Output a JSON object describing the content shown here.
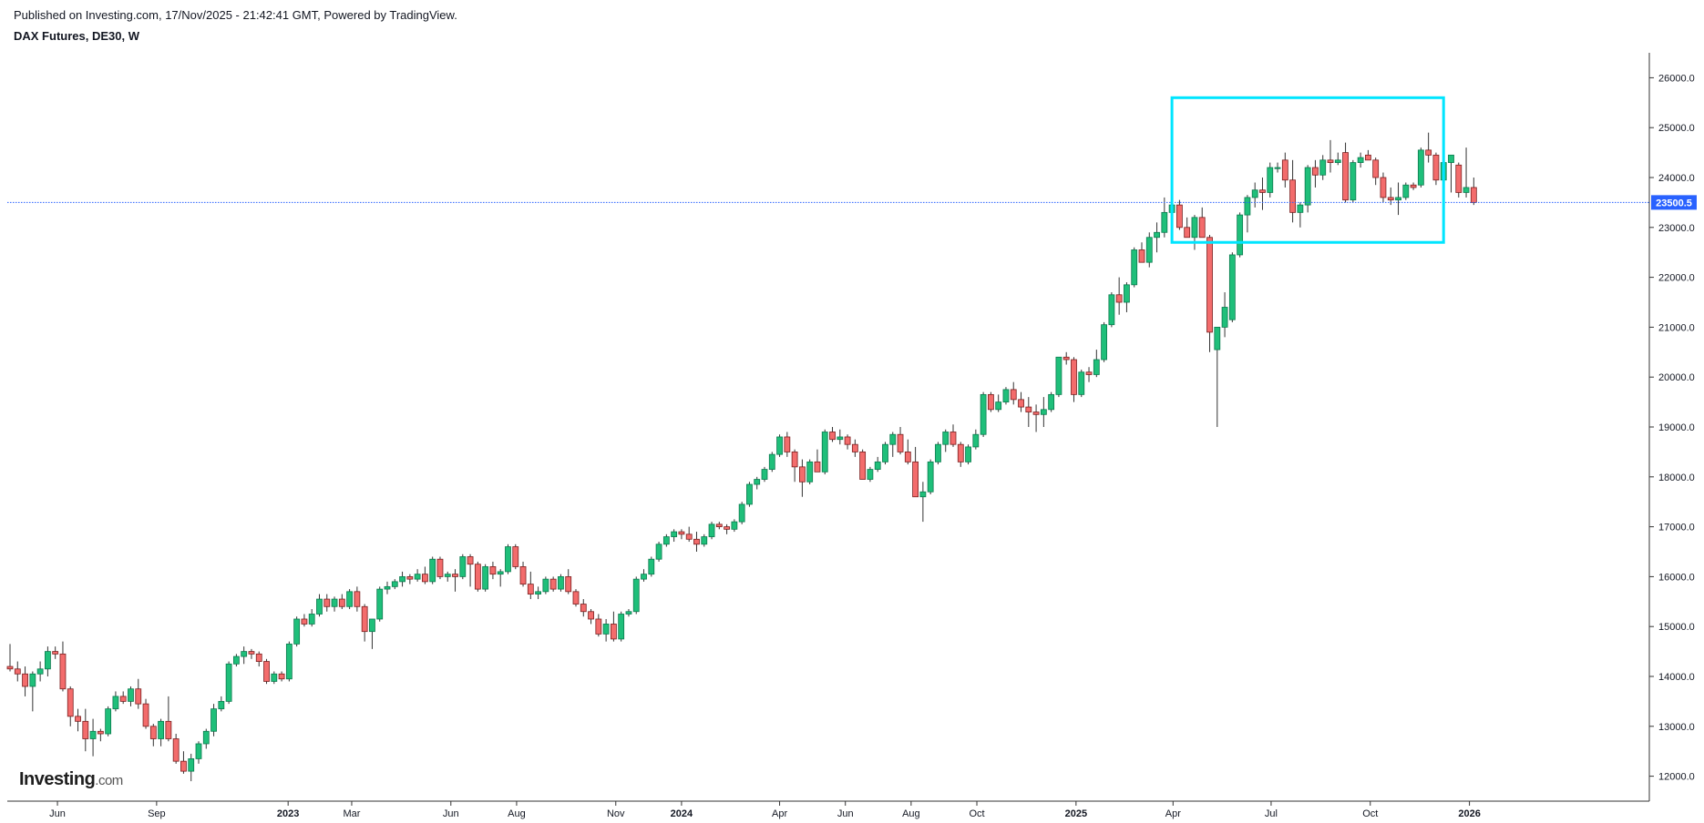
{
  "header": {
    "published": "Published on Investing.com, 17/Nov/2025 - 21:42:41 GMT, Powered by TradingView.",
    "title": "DAX Futures, DE30, W"
  },
  "logo": {
    "name": "Investing",
    "suffix": ".com"
  },
  "colors": {
    "up": "#26a69a",
    "upFill": "#1fbf7a",
    "down": "#ef5350",
    "downFill": "#f36c6c",
    "priceLine": "#2962ff",
    "box": "#00e5ff",
    "axis": "#333333"
  },
  "chart_data": {
    "type": "candlestick",
    "title": "DAX Futures, DE30, W",
    "ylim": [
      11500,
      26500
    ],
    "y_ticks": [
      "26000.0",
      "25000.0",
      "24000.0",
      "23000.0",
      "22000.0",
      "21000.0",
      "20000.0",
      "19000.0",
      "18000.0",
      "17000.0",
      "16000.0",
      "15000.0",
      "14000.0",
      "13000.0",
      "12000.0"
    ],
    "x_ticks": [
      {
        "label": "Jun",
        "date": "2022-06-01",
        "bold": false
      },
      {
        "label": "Sep",
        "date": "2022-09-01",
        "bold": false
      },
      {
        "label": "2023",
        "date": "2023-01-01",
        "bold": true
      },
      {
        "label": "Mar",
        "date": "2023-03-01",
        "bold": false
      },
      {
        "label": "Jun",
        "date": "2023-06-01",
        "bold": false
      },
      {
        "label": "Aug",
        "date": "2023-08-01",
        "bold": false
      },
      {
        "label": "Nov",
        "date": "2023-11-01",
        "bold": false
      },
      {
        "label": "2024",
        "date": "2024-01-01",
        "bold": true
      },
      {
        "label": "Apr",
        "date": "2024-04-01",
        "bold": false
      },
      {
        "label": "Jun",
        "date": "2024-06-01",
        "bold": false
      },
      {
        "label": "Aug",
        "date": "2024-08-01",
        "bold": false
      },
      {
        "label": "Oct",
        "date": "2024-10-01",
        "bold": false
      },
      {
        "label": "2025",
        "date": "2025-01-01",
        "bold": true
      },
      {
        "label": "Apr",
        "date": "2025-04-01",
        "bold": false
      },
      {
        "label": "Jul",
        "date": "2025-07-01",
        "bold": false
      },
      {
        "label": "Oct",
        "date": "2025-10-01",
        "bold": false
      },
      {
        "label": "2026",
        "date": "2026-01-01",
        "bold": true
      }
    ],
    "first_week": "2022-04-18",
    "last_price": 23500.5,
    "last_price_label": "23500.5",
    "highlight_box": {
      "x_from": "2025-03-31",
      "x_to": "2025-12-08",
      "y_from": 22700,
      "y_to": 25600
    },
    "candles": [
      [
        14200,
        14650,
        14100,
        14150
      ],
      [
        14150,
        14300,
        13900,
        14050
      ],
      [
        14050,
        14200,
        13600,
        13800
      ],
      [
        13800,
        14100,
        13300,
        14050
      ],
      [
        14050,
        14300,
        13900,
        14150
      ],
      [
        14150,
        14600,
        14000,
        14500
      ],
      [
        14500,
        14600,
        14350,
        14450
      ],
      [
        14450,
        14700,
        13700,
        13750
      ],
      [
        13750,
        13800,
        13000,
        13200
      ],
      [
        13200,
        13350,
        12900,
        13100
      ],
      [
        13100,
        13350,
        12500,
        12750
      ],
      [
        12750,
        13150,
        12400,
        12900
      ],
      [
        12900,
        12950,
        12700,
        12850
      ],
      [
        12850,
        13400,
        12800,
        13350
      ],
      [
        13350,
        13700,
        13300,
        13600
      ],
      [
        13600,
        13700,
        13450,
        13500
      ],
      [
        13500,
        13800,
        13400,
        13750
      ],
      [
        13750,
        13950,
        13350,
        13450
      ],
      [
        13450,
        13550,
        12950,
        13000
      ],
      [
        13000,
        13050,
        12600,
        12750
      ],
      [
        12750,
        13150,
        12600,
        13100
      ],
      [
        13100,
        13600,
        12700,
        12750
      ],
      [
        12750,
        12850,
        12250,
        12300
      ],
      [
        12300,
        12500,
        12050,
        12100
      ],
      [
        12100,
        12450,
        11900,
        12350
      ],
      [
        12350,
        12700,
        12250,
        12650
      ],
      [
        12650,
        12950,
        12550,
        12900
      ],
      [
        12900,
        13450,
        12800,
        13350
      ],
      [
        13350,
        13600,
        13300,
        13500
      ],
      [
        13500,
        14300,
        13450,
        14250
      ],
      [
        14250,
        14450,
        14200,
        14400
      ],
      [
        14400,
        14600,
        14250,
        14500
      ],
      [
        14500,
        14550,
        14350,
        14450
      ],
      [
        14450,
        14500,
        14200,
        14300
      ],
      [
        14300,
        14350,
        13850,
        13900
      ],
      [
        13900,
        14100,
        13850,
        14050
      ],
      [
        14050,
        14100,
        13900,
        13950
      ],
      [
        13950,
        14700,
        13900,
        14650
      ],
      [
        14650,
        15200,
        14600,
        15150
      ],
      [
        15150,
        15250,
        15000,
        15050
      ],
      [
        15050,
        15350,
        15000,
        15250
      ],
      [
        15250,
        15650,
        15200,
        15550
      ],
      [
        15550,
        15650,
        15300,
        15400
      ],
      [
        15400,
        15600,
        15300,
        15550
      ],
      [
        15550,
        15650,
        15350,
        15400
      ],
      [
        15400,
        15750,
        15350,
        15700
      ],
      [
        15700,
        15800,
        15300,
        15400
      ],
      [
        15400,
        15450,
        14700,
        14900
      ],
      [
        14900,
        15100,
        14550,
        15150
      ],
      [
        15150,
        15800,
        15100,
        15750
      ],
      [
        15750,
        15900,
        15650,
        15800
      ],
      [
        15800,
        15950,
        15750,
        15900
      ],
      [
        15900,
        16100,
        15800,
        16000
      ],
      [
        16000,
        16050,
        15850,
        15950
      ],
      [
        15950,
        16150,
        15900,
        16050
      ],
      [
        16050,
        16200,
        15850,
        15900
      ],
      [
        15900,
        16400,
        15850,
        16350
      ],
      [
        16350,
        16400,
        15950,
        16000
      ],
      [
        16000,
        16100,
        15900,
        16050
      ],
      [
        16050,
        16150,
        15700,
        16000
      ],
      [
        16000,
        16450,
        15950,
        16400
      ],
      [
        16400,
        16450,
        15800,
        16250
      ],
      [
        16250,
        16300,
        15700,
        15750
      ],
      [
        15750,
        16250,
        15700,
        16200
      ],
      [
        16200,
        16300,
        15950,
        16050
      ],
      [
        16050,
        16150,
        15800,
        16100
      ],
      [
        16100,
        16650,
        16050,
        16600
      ],
      [
        16600,
        16650,
        16150,
        16200
      ],
      [
        16200,
        16300,
        15800,
        15850
      ],
      [
        15850,
        16100,
        15550,
        15650
      ],
      [
        15650,
        15800,
        15550,
        15700
      ],
      [
        15700,
        16000,
        15650,
        15950
      ],
      [
        15950,
        16000,
        15700,
        15750
      ],
      [
        15750,
        16050,
        15700,
        16000
      ],
      [
        16000,
        16150,
        15650,
        15700
      ],
      [
        15700,
        15750,
        15400,
        15450
      ],
      [
        15450,
        15550,
        15200,
        15300
      ],
      [
        15300,
        15350,
        15050,
        15150
      ],
      [
        15150,
        15250,
        14800,
        14850
      ],
      [
        14850,
        15150,
        14700,
        15050
      ],
      [
        15050,
        15300,
        14700,
        14750
      ],
      [
        14750,
        15300,
        14700,
        15250
      ],
      [
        15250,
        15350,
        15200,
        15300
      ],
      [
        15300,
        16000,
        15250,
        15950
      ],
      [
        15950,
        16150,
        15900,
        16050
      ],
      [
        16050,
        16400,
        16000,
        16350
      ],
      [
        16350,
        16700,
        16300,
        16650
      ],
      [
        16650,
        16850,
        16600,
        16800
      ],
      [
        16800,
        16950,
        16700,
        16900
      ],
      [
        16900,
        16950,
        16750,
        16850
      ],
      [
        16850,
        17000,
        16700,
        16750
      ],
      [
        16750,
        16900,
        16500,
        16650
      ],
      [
        16650,
        16850,
        16600,
        16800
      ],
      [
        16800,
        17100,
        16750,
        17050
      ],
      [
        17050,
        17100,
        16950,
        17000
      ],
      [
        17000,
        17050,
        16850,
        16950
      ],
      [
        16950,
        17150,
        16900,
        17100
      ],
      [
        17100,
        17500,
        17050,
        17450
      ],
      [
        17450,
        17900,
        17400,
        17850
      ],
      [
        17850,
        18000,
        17750,
        17950
      ],
      [
        17950,
        18200,
        17900,
        18150
      ],
      [
        18150,
        18500,
        18100,
        18450
      ],
      [
        18450,
        18850,
        18400,
        18800
      ],
      [
        18800,
        18900,
        18400,
        18500
      ],
      [
        18500,
        18550,
        17900,
        18200
      ],
      [
        18200,
        18350,
        17600,
        17900
      ],
      [
        17900,
        18350,
        17850,
        18300
      ],
      [
        18300,
        18550,
        18100,
        18100
      ],
      [
        18100,
        18950,
        18050,
        18900
      ],
      [
        18900,
        19000,
        18700,
        18750
      ],
      [
        18750,
        18950,
        18650,
        18800
      ],
      [
        18800,
        18850,
        18550,
        18650
      ],
      [
        18650,
        18750,
        18400,
        18500
      ],
      [
        18500,
        18550,
        17950,
        17950
      ],
      [
        17950,
        18200,
        17900,
        18150
      ],
      [
        18150,
        18400,
        18100,
        18300
      ],
      [
        18300,
        18700,
        18250,
        18650
      ],
      [
        18650,
        18900,
        18400,
        18850
      ],
      [
        18850,
        19000,
        18450,
        18500
      ],
      [
        18500,
        18750,
        18250,
        18300
      ],
      [
        18300,
        18600,
        17600,
        17600
      ],
      [
        17600,
        17900,
        17100,
        17700
      ],
      [
        17700,
        18350,
        17650,
        18300
      ],
      [
        18300,
        18700,
        18250,
        18650
      ],
      [
        18650,
        18950,
        18500,
        18900
      ],
      [
        18900,
        19050,
        18600,
        18650
      ],
      [
        18650,
        18700,
        18200,
        18300
      ],
      [
        18300,
        18650,
        18250,
        18600
      ],
      [
        18600,
        18950,
        18550,
        18850
      ],
      [
        18850,
        19700,
        18800,
        19650
      ],
      [
        19650,
        19700,
        19300,
        19350
      ],
      [
        19350,
        19650,
        19300,
        19500
      ],
      [
        19500,
        19800,
        19450,
        19750
      ],
      [
        19750,
        19900,
        19450,
        19550
      ],
      [
        19550,
        19700,
        19300,
        19400
      ],
      [
        19400,
        19600,
        19000,
        19300
      ],
      [
        19300,
        19450,
        18900,
        19250
      ],
      [
        19250,
        19600,
        19000,
        19350
      ],
      [
        19350,
        19700,
        19300,
        19650
      ],
      [
        19650,
        20400,
        19600,
        20400
      ],
      [
        20400,
        20500,
        20250,
        20350
      ],
      [
        20350,
        20400,
        19500,
        19650
      ],
      [
        19650,
        20150,
        19600,
        20100
      ],
      [
        20100,
        20200,
        19900,
        20050
      ],
      [
        20050,
        20550,
        20000,
        20350
      ],
      [
        20350,
        21100,
        20300,
        21050
      ],
      [
        21050,
        21700,
        21000,
        21650
      ],
      [
        21650,
        22000,
        21250,
        21500
      ],
      [
        21500,
        21900,
        21300,
        21850
      ],
      [
        21850,
        22600,
        21800,
        22550
      ],
      [
        22550,
        22700,
        22300,
        22300
      ],
      [
        22300,
        22900,
        22200,
        22800
      ],
      [
        22800,
        23100,
        22500,
        22900
      ],
      [
        22900,
        23600,
        22800,
        23300
      ],
      [
        23300,
        23700,
        23000,
        23450
      ],
      [
        23450,
        23550,
        22950,
        23000
      ],
      [
        23000,
        23200,
        22800,
        22800
      ],
      [
        22800,
        23250,
        22550,
        23200
      ],
      [
        23200,
        23400,
        22800,
        22800
      ],
      [
        22800,
        22850,
        20500,
        20900
      ],
      [
        20550,
        21000,
        19000,
        21000
      ],
      [
        21000,
        21700,
        20800,
        21400
      ],
      [
        21150,
        22500,
        21100,
        22450
      ],
      [
        22450,
        23300,
        22400,
        23250
      ],
      [
        23250,
        23650,
        22900,
        23600
      ],
      [
        23600,
        23900,
        23400,
        23750
      ],
      [
        23750,
        24000,
        23350,
        23700
      ],
      [
        23700,
        24300,
        23600,
        24200
      ],
      [
        24200,
        24300,
        24100,
        24200
      ],
      [
        24350,
        24500,
        23800,
        23950
      ],
      [
        23950,
        24350,
        23100,
        23300
      ],
      [
        23300,
        23500,
        23000,
        23450
      ],
      [
        23450,
        24250,
        23300,
        24200
      ],
      [
        24200,
        24350,
        23800,
        24050
      ],
      [
        24050,
        24450,
        23950,
        24350
      ],
      [
        24350,
        24750,
        24100,
        24300
      ],
      [
        24300,
        24500,
        24250,
        24350
      ],
      [
        24500,
        24700,
        23500,
        23550
      ],
      [
        23550,
        24350,
        23500,
        24300
      ],
      [
        24300,
        24500,
        24200,
        24400
      ],
      [
        24450,
        24550,
        24350,
        24350
      ],
      [
        24350,
        24400,
        23850,
        24000
      ],
      [
        24000,
        24100,
        23500,
        23600
      ],
      [
        23600,
        23800,
        23450,
        23550
      ],
      [
        23550,
        23900,
        23250,
        23600
      ],
      [
        23600,
        23900,
        23550,
        23850
      ],
      [
        23850,
        23900,
        23750,
        23800
      ],
      [
        23850,
        24600,
        23800,
        24550
      ],
      [
        24550,
        24900,
        24300,
        24450
      ],
      [
        24450,
        24500,
        23850,
        23950
      ],
      [
        23950,
        24350,
        23900,
        24300
      ],
      [
        24300,
        24450,
        23700,
        24450
      ],
      [
        24250,
        24300,
        23600,
        23700
      ],
      [
        23700,
        24600,
        23600,
        23800
      ],
      [
        23800,
        24000,
        23450,
        23500
      ]
    ]
  }
}
